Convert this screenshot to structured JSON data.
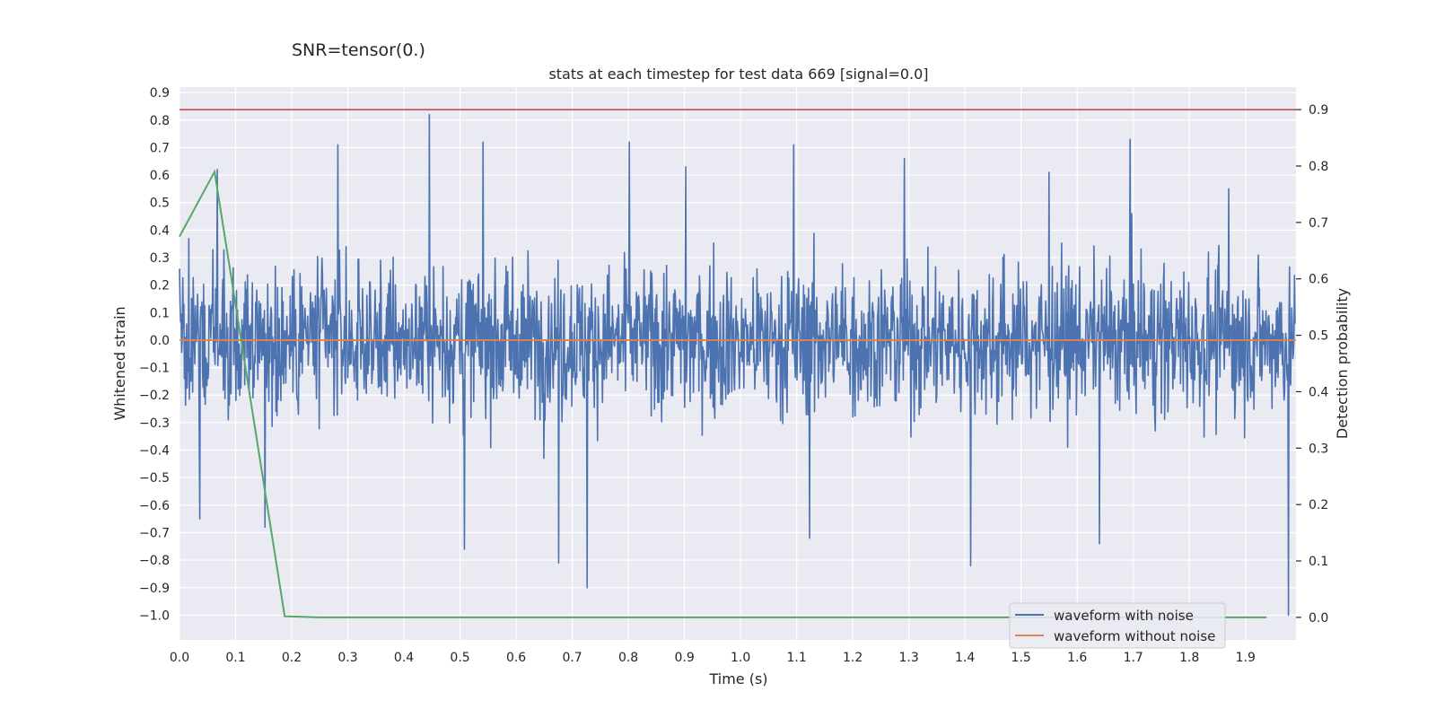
{
  "suptitle": "SNR=tensor(0.)",
  "chart_data": {
    "type": "line",
    "title": "stats at each timestep for test data 669 [signal=0.0]",
    "xlabel": "Time (s)",
    "ylabel": "Whitened strain",
    "y2label": "Detection probability",
    "xlim": [
      0.0,
      1.99
    ],
    "ylim": [
      -1.09,
      0.92
    ],
    "y2lim": [
      -0.04,
      0.94
    ],
    "xticks": [
      "0.0",
      "0.1",
      "0.2",
      "0.3",
      "0.4",
      "0.5",
      "0.6",
      "0.7",
      "0.8",
      "0.9",
      "1.0",
      "1.1",
      "1.2",
      "1.3",
      "1.4",
      "1.5",
      "1.6",
      "1.7",
      "1.8",
      "1.9"
    ],
    "yticks": [
      "0.9",
      "0.8",
      "0.7",
      "0.6",
      "0.5",
      "0.4",
      "0.3",
      "0.2",
      "0.1",
      "0.0",
      "−0.1",
      "−0.2",
      "−0.3",
      "−0.4",
      "−0.5",
      "−0.6",
      "−0.7",
      "−0.8",
      "−0.9",
      "−1.0"
    ],
    "y2ticks": [
      "0.0",
      "0.1",
      "0.2",
      "0.3",
      "0.4",
      "0.5",
      "0.6",
      "0.7",
      "0.8",
      "0.9"
    ],
    "grid": true,
    "legend_position": "lower-right",
    "series": [
      {
        "name": "waveform with noise",
        "axis": "left",
        "color": "#4c72b0",
        "sample_count": 2048,
        "peaks": [
          {
            "x": 0.445,
            "y": 0.82
          },
          {
            "x": 0.067,
            "y": 0.62
          },
          {
            "x": 0.282,
            "y": 0.71
          },
          {
            "x": 0.541,
            "y": 0.72
          },
          {
            "x": 0.802,
            "y": 0.72
          },
          {
            "x": 0.902,
            "y": 0.63
          },
          {
            "x": 1.095,
            "y": 0.71
          },
          {
            "x": 1.292,
            "y": 0.66
          },
          {
            "x": 1.55,
            "y": 0.61
          },
          {
            "x": 1.694,
            "y": 0.73
          },
          {
            "x": 1.87,
            "y": 0.55
          },
          {
            "x": 0.727,
            "y": -0.9
          },
          {
            "x": 0.676,
            "y": -0.81
          },
          {
            "x": 1.977,
            "y": -1.0
          },
          {
            "x": 1.41,
            "y": -0.82
          },
          {
            "x": 0.508,
            "y": -0.76
          },
          {
            "x": 0.152,
            "y": -0.68
          },
          {
            "x": 1.64,
            "y": -0.74
          },
          {
            "x": 1.123,
            "y": -0.72
          },
          {
            "x": 0.036,
            "y": -0.65
          }
        ]
      },
      {
        "name": "waveform without noise",
        "axis": "left",
        "color": "#dd8452",
        "x": [
          0.0,
          1.99
        ],
        "y": [
          0.0,
          0.0
        ]
      },
      {
        "name": "",
        "axis": "right",
        "color": "#55a868",
        "x": [
          0.0,
          0.0625,
          0.1875,
          0.25,
          1.9375
        ],
        "y": [
          0.675,
          0.79,
          0.002,
          0.0,
          0.0
        ]
      }
    ],
    "threshold": {
      "axis": "right",
      "y": 0.9,
      "color": "#c44e52"
    }
  }
}
